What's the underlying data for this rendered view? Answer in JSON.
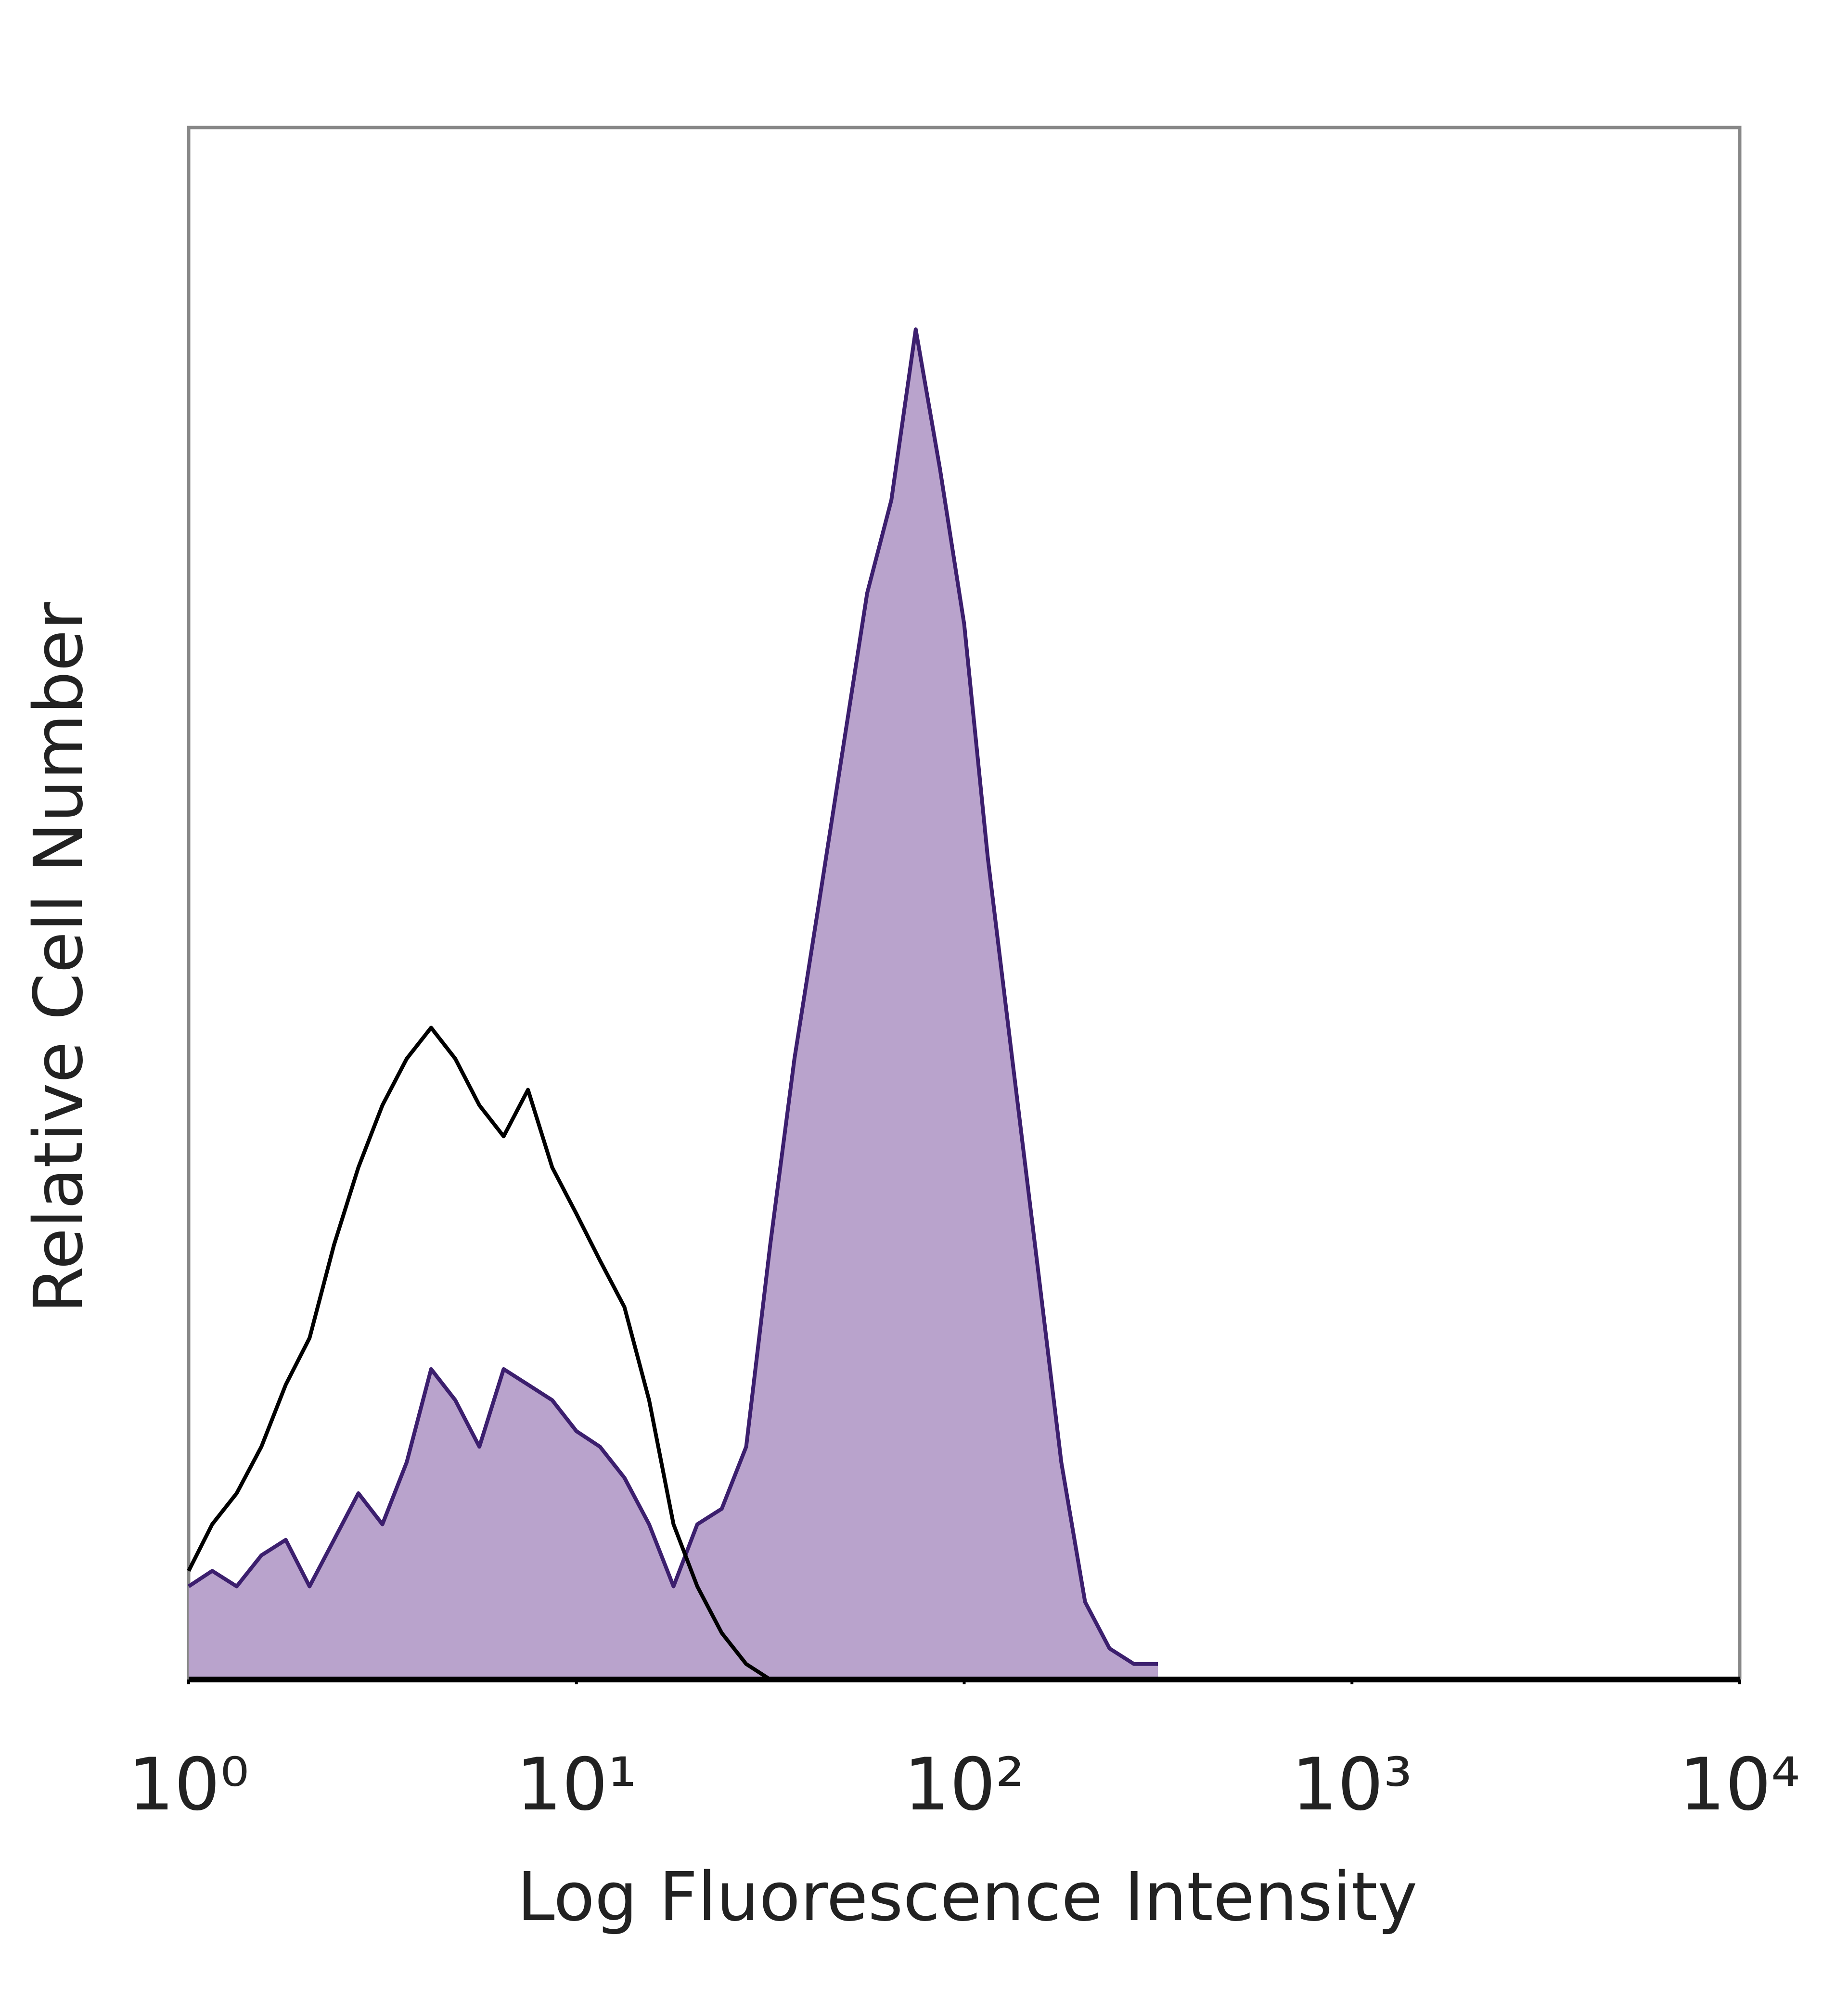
{
  "chart_data": {
    "type": "histogram-overlay",
    "x_label": "Log Fluorescence Intensity",
    "y_label": "Relative Cell Number",
    "xscale": "log",
    "xlim": [
      1,
      10000
    ],
    "xticks": [
      {
        "value": 1,
        "label": "10⁰"
      },
      {
        "value": 10,
        "label": "10¹"
      },
      {
        "value": 100,
        "label": "10²"
      },
      {
        "value": 1000,
        "label": "10³"
      },
      {
        "value": 10000,
        "label": "10⁴"
      }
    ],
    "ylim": [
      0,
      100
    ],
    "x": [
      1,
      1.15,
      1.33,
      1.54,
      1.78,
      2.05,
      2.37,
      2.74,
      3.16,
      3.65,
      4.22,
      4.87,
      5.62,
      6.49,
      7.5,
      8.66,
      10,
      11.5,
      13.3,
      15.4,
      17.8,
      20.5,
      23.7,
      27.4,
      31.6,
      36.5,
      42.2,
      48.7,
      56.2,
      64.9,
      75,
      86.6,
      100,
      115,
      133,
      154,
      178,
      205,
      237,
      274,
      316
    ],
    "series": [
      {
        "color": "#3c1f6e",
        "fill_color": "#b9a3cc",
        "filled": true,
        "values": [
          6,
          7,
          6,
          8,
          9,
          6,
          9,
          12,
          10,
          14,
          20,
          18,
          15,
          20,
          19,
          18,
          16,
          15,
          13,
          10,
          6,
          10,
          11,
          15,
          28,
          40,
          50,
          60,
          70,
          76,
          87,
          78,
          68,
          53,
          40,
          27,
          14,
          5,
          2,
          1,
          1
        ]
      },
      {
        "color": "#000000",
        "filled": false,
        "values": [
          7,
          10,
          12,
          15,
          19,
          22,
          28,
          33,
          37,
          40,
          42,
          40,
          37,
          35,
          38,
          33,
          30,
          27,
          24,
          18,
          10,
          6,
          3,
          1,
          0,
          0,
          0,
          0,
          0,
          0,
          0,
          0,
          0,
          0,
          0,
          0,
          0,
          0,
          0,
          0,
          0
        ]
      }
    ]
  }
}
